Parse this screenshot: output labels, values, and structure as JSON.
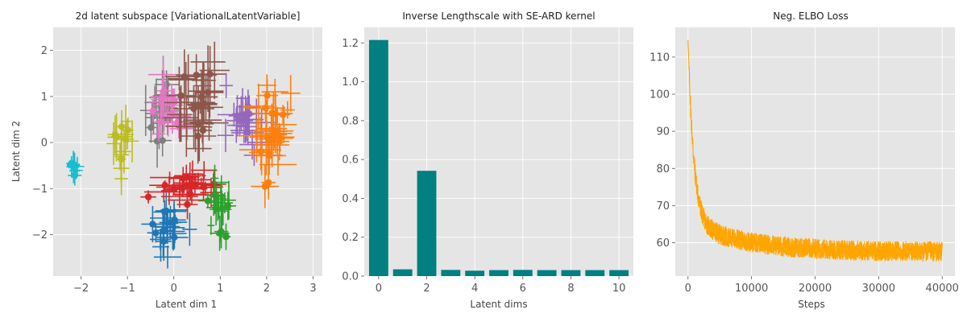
{
  "chart_data": [
    {
      "type": "scatter",
      "title": "2d latent subspace [VariationalLatentVariable]",
      "xlabel": "Latent dim 1",
      "ylabel": "Latent dim 2",
      "xlim": [
        -2.6,
        3.2
      ],
      "ylim": [
        -2.9,
        2.5
      ],
      "xticks": [
        "−2",
        "−1",
        "0",
        "1",
        "2",
        "3"
      ],
      "xtick_values": [
        -2,
        -1,
        0,
        1,
        2,
        3
      ],
      "yticks": [
        "−2",
        "−1",
        "0",
        "1",
        "2"
      ],
      "ytick_values": [
        -2,
        -1,
        0,
        1,
        2
      ],
      "grid": true,
      "error_bars": true,
      "clusters": [
        {
          "color": "#17becf",
          "center": [
            -2.15,
            -0.55
          ],
          "spread": [
            0.05,
            0.08
          ],
          "err": [
            0.12,
            0.25
          ],
          "n": 10
        },
        {
          "color": "#bcbd22",
          "center": [
            -1.1,
            0.0
          ],
          "spread": [
            0.1,
            0.3
          ],
          "err": [
            0.15,
            0.35
          ],
          "n": 16
        },
        {
          "color": "#7f7f7f",
          "center": [
            -0.35,
            0.75
          ],
          "spread": [
            0.15,
            0.35
          ],
          "err": [
            0.2,
            0.4
          ],
          "n": 20
        },
        {
          "color": "#e377c2",
          "center": [
            -0.1,
            0.6
          ],
          "spread": [
            0.2,
            0.35
          ],
          "err": [
            0.25,
            0.3
          ],
          "n": 24
        },
        {
          "color": "#8c564b",
          "center": [
            0.5,
            0.9
          ],
          "spread": [
            0.25,
            0.45
          ],
          "err": [
            0.3,
            0.45
          ],
          "n": 34
        },
        {
          "color": "#9467bd",
          "center": [
            1.55,
            0.45
          ],
          "spread": [
            0.2,
            0.35
          ],
          "err": [
            0.25,
            0.35
          ],
          "n": 22
        },
        {
          "color": "#ff7f0e",
          "center": [
            2.15,
            0.2
          ],
          "spread": [
            0.18,
            0.5
          ],
          "err": [
            0.3,
            0.35
          ],
          "n": 40
        },
        {
          "color": "#d62728",
          "center": [
            0.4,
            -0.95
          ],
          "spread": [
            0.28,
            0.15
          ],
          "err": [
            0.3,
            0.22
          ],
          "n": 32
        },
        {
          "color": "#2ca02c",
          "center": [
            0.95,
            -1.45
          ],
          "spread": [
            0.12,
            0.3
          ],
          "err": [
            0.15,
            0.3
          ],
          "n": 22
        },
        {
          "color": "#1f77b4",
          "center": [
            -0.15,
            -1.75
          ],
          "spread": [
            0.15,
            0.35
          ],
          "err": [
            0.2,
            0.3
          ],
          "n": 26
        }
      ]
    },
    {
      "type": "bar",
      "title": "Inverse Lengthscale with SE-ARD kernel",
      "xlabel": "Latent dims",
      "ylabel": "",
      "color": "#008080",
      "categories": [
        0,
        1,
        2,
        3,
        4,
        5,
        6,
        7,
        8,
        9,
        10
      ],
      "values": [
        1.215,
        0.035,
        0.542,
        0.032,
        0.028,
        0.031,
        0.032,
        0.031,
        0.031,
        0.031,
        0.031
      ],
      "xlim": [
        -0.6,
        10.6
      ],
      "ylim": [
        0,
        1.28
      ],
      "xticks": [
        "0",
        "2",
        "4",
        "6",
        "8",
        "10"
      ],
      "xtick_values": [
        0,
        2,
        4,
        6,
        8,
        10
      ],
      "yticks": [
        "0.0",
        "0.2",
        "0.4",
        "0.6",
        "0.8",
        "1.0",
        "1.2"
      ],
      "ytick_values": [
        0,
        0.2,
        0.4,
        0.6,
        0.8,
        1.0,
        1.2
      ],
      "grid": true
    },
    {
      "type": "line",
      "title": "Neg. ELBO Loss",
      "xlabel": "Steps",
      "ylabel": "",
      "color": "#ffa500",
      "start_value": 115,
      "plateau_value": 57.5,
      "x_max": 40000,
      "xlim": [
        -2000,
        42000
      ],
      "ylim": [
        51,
        118
      ],
      "xticks": [
        "0",
        "10000",
        "20000",
        "30000",
        "40000"
      ],
      "xtick_values": [
        0,
        10000,
        20000,
        30000,
        40000
      ],
      "yticks": [
        "60",
        "70",
        "80",
        "90",
        "100",
        "110"
      ],
      "ytick_values": [
        60,
        70,
        80,
        90,
        100,
        110
      ],
      "grid": true
    }
  ]
}
